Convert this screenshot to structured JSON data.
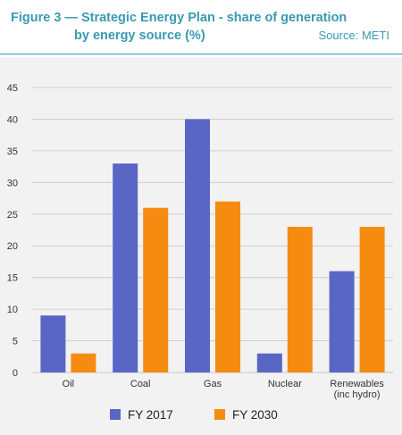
{
  "header": {
    "title_line1": "Figure 3 — Strategic Energy Plan - share of generation",
    "title_line2": "by energy source (%)",
    "source": "Source: METI"
  },
  "colors": {
    "accent": "#3a9ab2",
    "series_2017": "#5a66c4",
    "series_2030": "#f68b12",
    "panel_bg": "#f2f2f2",
    "grid": "#c8c8c8"
  },
  "chart_data": {
    "type": "bar",
    "title": "Strategic Energy Plan - share of generation by energy source (%)",
    "xlabel": "",
    "ylabel": "",
    "categories": [
      "Oil",
      "Coal",
      "Gas",
      "Nuclear",
      "Renewables\n(inc hydro)"
    ],
    "series": [
      {
        "name": "FY 2017",
        "values": [
          9,
          33,
          40,
          3,
          16
        ]
      },
      {
        "name": "FY 2030",
        "values": [
          3,
          26,
          27,
          23,
          23
        ]
      }
    ],
    "ylim": [
      0,
      45
    ],
    "yticks": [
      0,
      5,
      10,
      15,
      20,
      25,
      30,
      35,
      40,
      45
    ],
    "grid": true,
    "legend": "bottom-center"
  }
}
